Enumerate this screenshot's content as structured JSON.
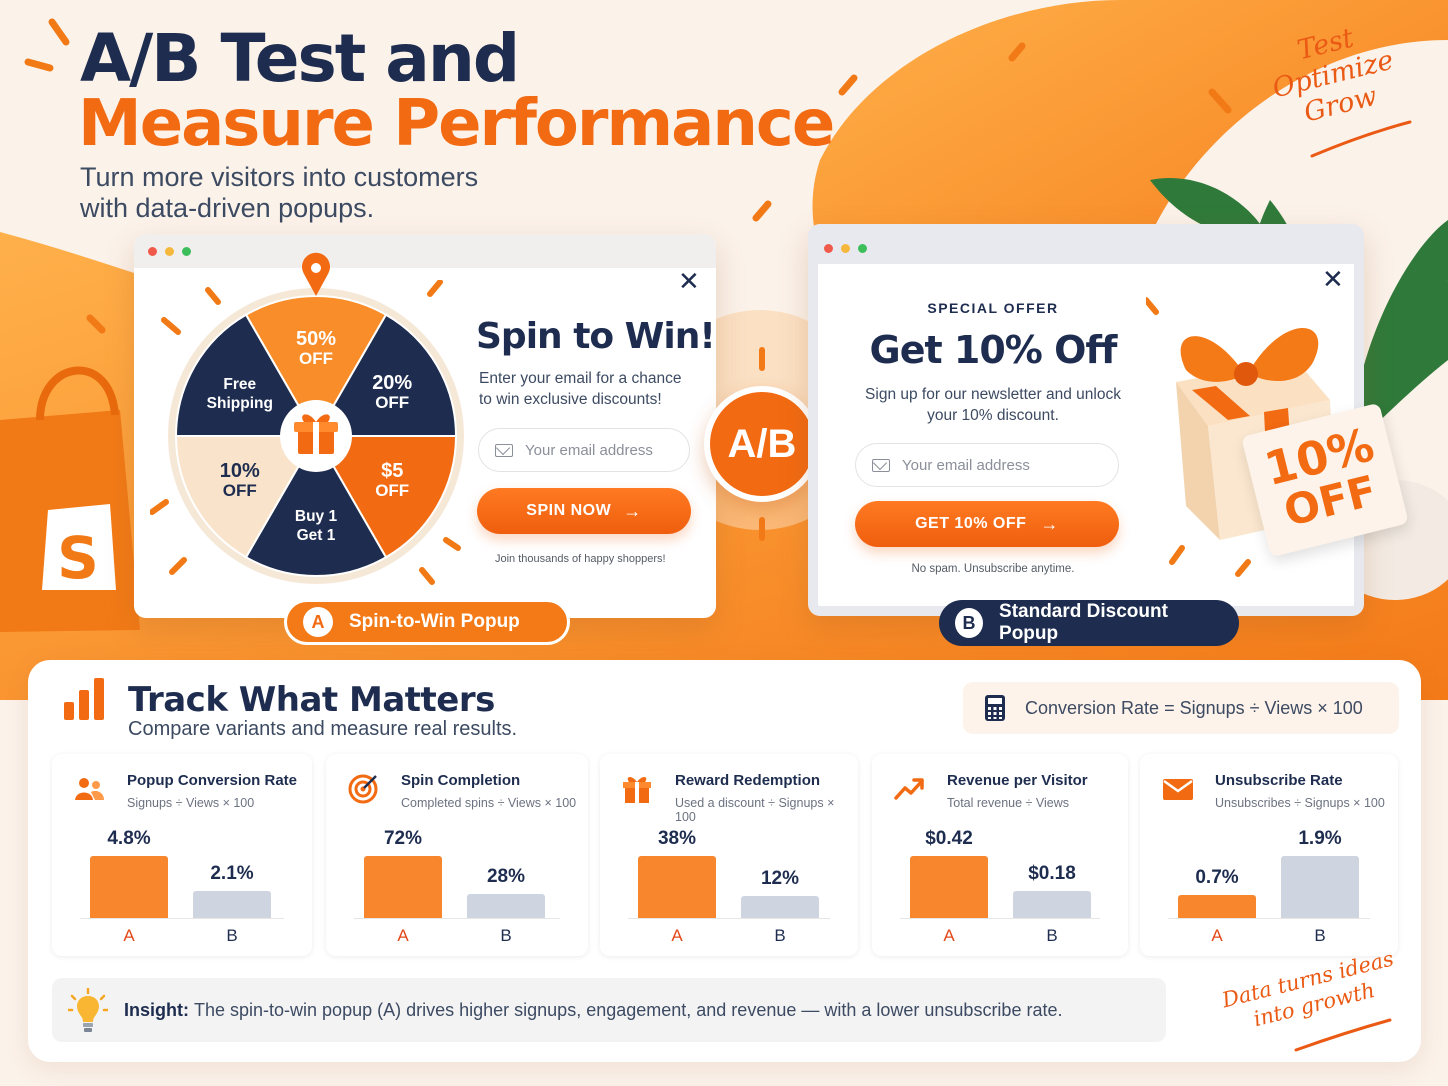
{
  "hero": {
    "title_line1": "A/B Test and",
    "title_line2": "Measure Performance",
    "subtitle_line1": "Turn more visitors into customers",
    "subtitle_line2": "with data-driven popups.",
    "tagline": [
      "Test",
      "Optimize",
      "Grow"
    ]
  },
  "colors": {
    "accent_orange": "#f26a12",
    "navy": "#1e2d4f",
    "variant_b_gray": "#cfd5e0"
  },
  "popup_a": {
    "heading": "Spin to Win!",
    "description_line1": "Enter your email for a chance",
    "description_line2": "to win exclusive discounts!",
    "email_placeholder": "Your email address",
    "cta_label": "SPIN NOW",
    "cta_icon": "arrow-right-icon",
    "footnote": "Join thousands of happy shoppers!",
    "wheel_segments": [
      {
        "line1": "50%",
        "line2": "OFF"
      },
      {
        "line1": "20%",
        "line2": "OFF"
      },
      {
        "line1": "$5",
        "line2": "OFF"
      },
      {
        "line1": "Buy 1",
        "line2": "Get 1"
      },
      {
        "line1": "10%",
        "line2": "OFF"
      },
      {
        "line1": "Free",
        "line2": "Shipping"
      }
    ],
    "variant_badge": "A",
    "variant_label": "Spin-to-Win Popup"
  },
  "ab_label": "A/B",
  "popup_b": {
    "eyebrow": "SPECIAL OFFER",
    "heading": "Get 10% Off",
    "description_line1": "Sign up for our newsletter and unlock",
    "description_line2": "your 10% discount.",
    "email_placeholder": "Your email address",
    "cta_label": "GET 10% OFF",
    "cta_icon": "arrow-right-icon",
    "footnote": "No spam. Unsubscribe anytime.",
    "gift_tag_line1": "10%",
    "gift_tag_line2": "OFF",
    "variant_badge": "B",
    "variant_label": "Standard Discount Popup"
  },
  "metrics": {
    "title": "Track What Matters",
    "subtitle": "Compare variants and measure real results.",
    "formula": "Conversion Rate = Signups ÷ Views × 100",
    "axis_a": "A",
    "axis_b": "B",
    "cards": [
      {
        "icon": "users-icon",
        "title": "Popup Conversion Rate",
        "formula": "Signups ÷ Views × 100",
        "a_label": "4.8%",
        "b_label": "2.1%",
        "a_value": 4.8,
        "b_value": 2.1
      },
      {
        "icon": "target-icon",
        "title": "Spin Completion",
        "formula": "Completed spins ÷ Views × 100",
        "a_label": "72%",
        "b_label": "28%",
        "a_value": 72,
        "b_value": 28
      },
      {
        "icon": "gift-icon",
        "title": "Reward Redemption",
        "formula": "Used a discount ÷ Signups × 100",
        "a_label": "38%",
        "b_label": "12%",
        "a_value": 38,
        "b_value": 12
      },
      {
        "icon": "trending-up-icon",
        "title": "Revenue per Visitor",
        "formula": "Total revenue ÷ Views",
        "a_label": "$0.42",
        "b_label": "$0.18",
        "a_value": 0.42,
        "b_value": 0.18
      },
      {
        "icon": "envelope-icon",
        "title": "Unsubscribe Rate",
        "formula": "Unsubscribes ÷ Signups × 100",
        "a_label": "0.7%",
        "b_label": "1.9%",
        "a_value": 0.7,
        "b_value": 1.9
      }
    ],
    "insight_label": "Insight:",
    "insight_text": "The spin-to-win popup (A) drives higher signups, engagement, and revenue — with a lower unsubscribe rate.",
    "sign_off_line1": "Data turns ideas",
    "sign_off_line2": "into growth"
  }
}
